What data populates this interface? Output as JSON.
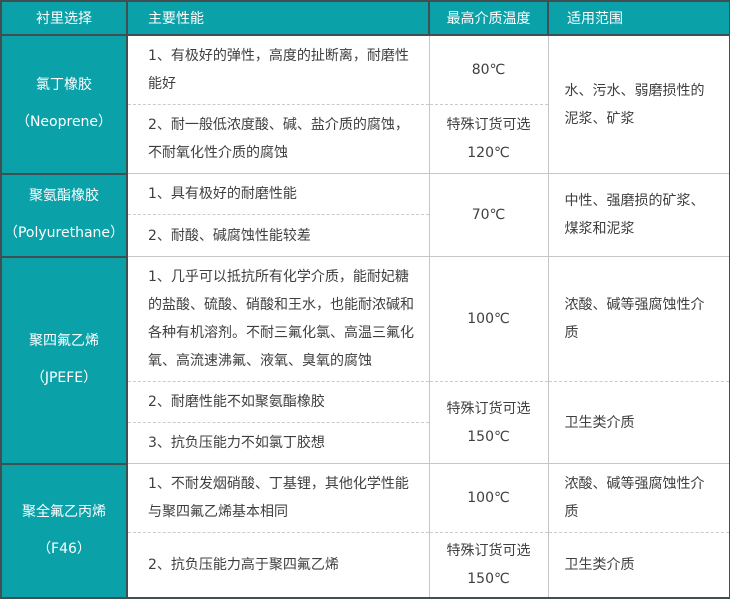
{
  "colors": {
    "teal": "#0aa1a9",
    "border_dark": "#414f52",
    "border_light": "#c6c6c6",
    "text_dark": "#3f3f3f",
    "text_light": "#ffffff"
  },
  "table": {
    "headers": [
      "衬里选择",
      "主要性能",
      "最高介质温度",
      "适用范围"
    ],
    "sections": [
      {
        "material": {
          "name": "氯丁橡胶",
          "alias": "（Neoprene）"
        },
        "rows": [
          {
            "property": "1、有极好的弹性，高度的扯断离，耐磨性能好",
            "temperature": "80℃"
          },
          {
            "property": "2、耐一般低浓度酸、碱、盐介质的腐蚀，不耐氧化性介质的腐蚀",
            "temperature": "特殊订货可选\n120℃"
          }
        ],
        "application": "水、污水、弱磨损性的泥浆、矿浆"
      },
      {
        "material": {
          "name": "聚氨酯橡胶",
          "alias": "（Polyurethane）"
        },
        "rows": [
          {
            "property": "1、具有极好的耐磨性能"
          },
          {
            "property": "2、耐酸、碱腐蚀性能较差"
          }
        ],
        "temperature": "70℃",
        "application": "中性、强磨损的矿浆、煤浆和泥浆"
      },
      {
        "material": {
          "name": "聚四氟乙烯",
          "alias": "（JPEFE）"
        },
        "rows": [
          {
            "property": "1、几乎可以抵抗所有化学介质，能耐妃糖的盐酸、硫酸、硝酸和王水，也能耐浓碱和各种有机溶剂。不耐三氟化氯、高温三氟化氧、高流速沸氟、液氧、臭氧的腐蚀",
            "temperature": "100℃",
            "application": "浓酸、碱等强腐蚀性介质"
          },
          {
            "property": "2、耐磨性能不如聚氨酯橡胶"
          },
          {
            "property": "3、抗负压能力不如氯丁胶想"
          }
        ],
        "shared": {
          "temperature": "特殊订货可选\n150℃",
          "application": "卫生类介质"
        }
      },
      {
        "material": {
          "name": "聚全氟乙丙烯",
          "alias": "（F46）"
        },
        "rows": [
          {
            "property": "1、不耐发烟硝酸、丁基锂，其他化学性能与聚四氟乙烯基本相同",
            "temperature": "100℃",
            "application": "浓酸、碱等强腐蚀性介质"
          },
          {
            "property": "2、抗负压能力高于聚四氟乙烯",
            "temperature": "特殊订货可选\n150℃",
            "application": "卫生类介质"
          }
        ]
      }
    ]
  }
}
